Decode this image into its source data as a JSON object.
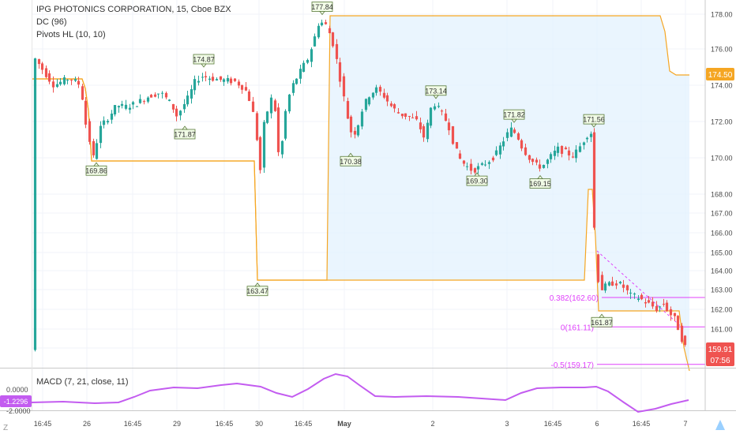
{
  "header": {
    "title": "IPG PHOTONICS CORPORATION, 15, Cboe BZX",
    "indicator_dc": "DC (96)",
    "indicator_pivots": "Pivots HL (10, 10)"
  },
  "macd_panel": {
    "label": "MACD (7, 21, close, 11)",
    "axis_ticks": [
      "0.0000",
      "-2.0000"
    ],
    "value_badge": "-1.2296"
  },
  "price_badges": {
    "dc_level": "174.50",
    "last_price": "159.91",
    "countdown": "07:56"
  },
  "fib_labels": [
    {
      "text": "0.382(162.60)",
      "value": 162.6
    },
    {
      "text": "0(161.11)",
      "value": 161.11
    },
    {
      "text": "-0.5(159.17)",
      "value": 159.17
    }
  ],
  "pivot_labels": [
    {
      "text": "174.87",
      "value": 174.87,
      "dir": "high"
    },
    {
      "text": "177.84",
      "value": 177.84,
      "dir": "high"
    },
    {
      "text": "173.14",
      "value": 173.14,
      "dir": "high"
    },
    {
      "text": "171.82",
      "value": 171.82,
      "dir": "high"
    },
    {
      "text": "171.56",
      "value": 171.56,
      "dir": "high"
    },
    {
      "text": "169.86",
      "value": 169.86,
      "dir": "low"
    },
    {
      "text": "171.87",
      "value": 171.87,
      "dir": "low"
    },
    {
      "text": "163.47",
      "value": 163.47,
      "dir": "low"
    },
    {
      "text": "170.38",
      "value": 170.38,
      "dir": "low"
    },
    {
      "text": "169.30",
      "value": 169.3,
      "dir": "low"
    },
    {
      "text": "169.15",
      "value": 169.15,
      "dir": "low"
    },
    {
      "text": "161.87",
      "value": 161.87,
      "dir": "low"
    }
  ],
  "colors": {
    "up": "#26a69a",
    "down": "#ef5350",
    "channel_line": "#f5a623",
    "channel_fill": "#e3f2fd",
    "fib": "#e040fb",
    "macd": "#c35cf0",
    "axis_text": "#4a4a4a",
    "last_price_bg": "#ef5350",
    "dc_badge_bg": "#f5a623"
  },
  "chart_data": {
    "type": "candlestick",
    "price_axis": {
      "ticks": [
        "178.00",
        "176.00",
        "174.00",
        "172.00",
        "170.00",
        "168.00",
        "167.00",
        "166.00",
        "165.00",
        "164.00",
        "163.00",
        "162.00",
        "161.00",
        "160.00"
      ],
      "scale_breaks": "non-linear: 2.00 spacing above 168.00, 1.00 spacing below"
    },
    "time_axis": {
      "labels": [
        "16:45",
        "26",
        "16:45",
        "29",
        "16:45",
        "30",
        "16:45",
        "May",
        "2",
        "3",
        "16:45",
        "6",
        "16:45",
        "7"
      ],
      "bold": [
        "May"
      ]
    },
    "series": [
      {
        "name": "IPG PHOTONICS CORPORATION",
        "kind": "ohlc",
        "last": 159.91
      },
      {
        "name": "DC (96)",
        "kind": "line",
        "last": 174.5
      }
    ]
  }
}
